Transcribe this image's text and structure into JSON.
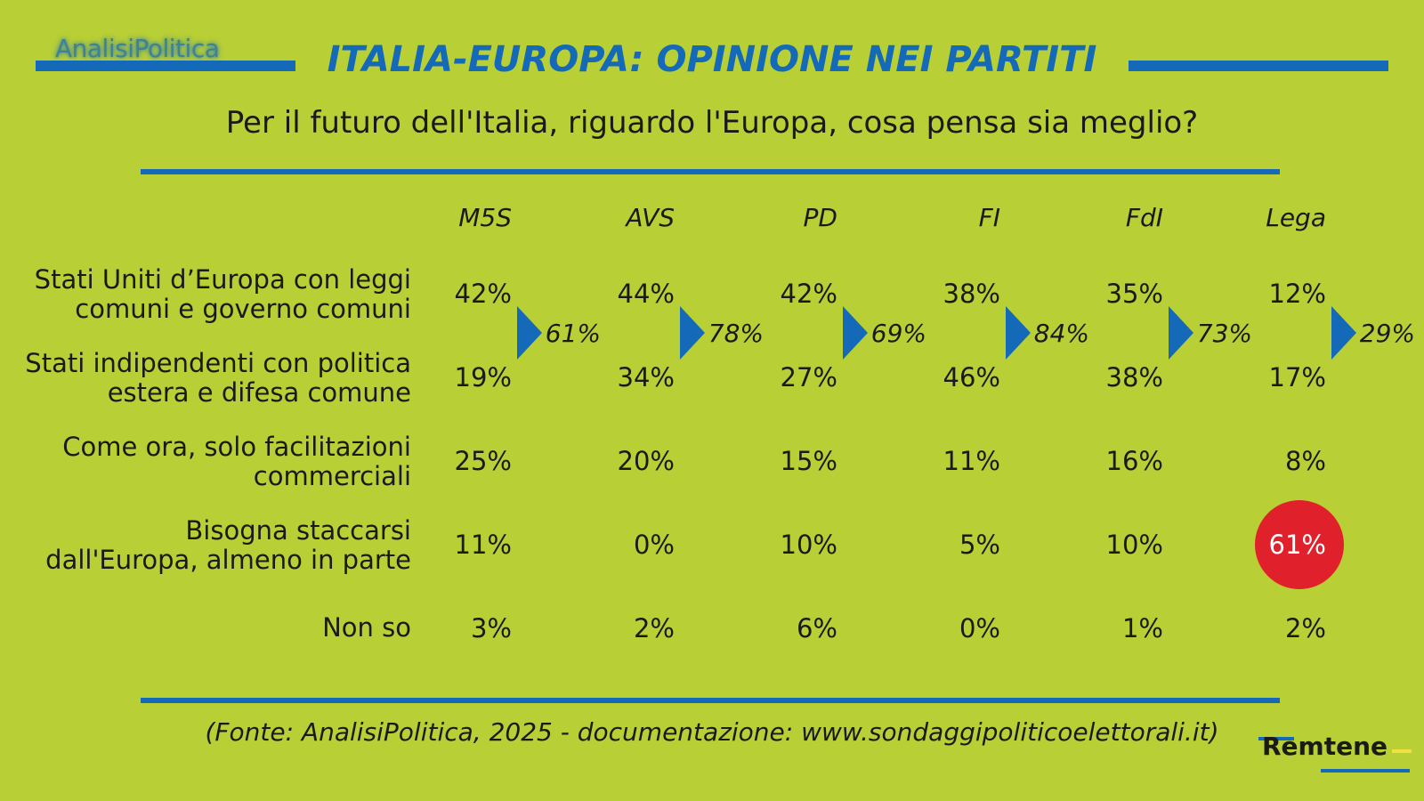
{
  "logo": "AnalisiPolitica",
  "title": "ITALIA-EUROPA: OPINIONE NEI PARTITI",
  "subtitle": "Per il futuro dell'Italia, riguardo l'Europa, cosa pensa sia meglio?",
  "source": "(Fonte: AnalisiPolitica, 2025 - documentazione: www.sondaggipoliticoelettorali.it)",
  "brand": "Remtene",
  "colors": {
    "background": "#b8cf36",
    "accent": "#1469b8",
    "highlight": "#e0202a"
  },
  "chart_data": {
    "type": "table",
    "parties": [
      "M5S",
      "AVS",
      "PD",
      "FI",
      "FdI",
      "Lega"
    ],
    "rows": [
      {
        "label_lines": [
          "Stati Uniti d’Europa con leggi",
          "comuni e governo comuni"
        ],
        "values": [
          "42%",
          "44%",
          "42%",
          "38%",
          "35%",
          "12%"
        ]
      },
      {
        "label_lines": [
          "Stati indipendenti con politica",
          "estera e difesa comune"
        ],
        "values": [
          "19%",
          "34%",
          "27%",
          "46%",
          "38%",
          "17%"
        ]
      },
      {
        "label_lines": [
          "Come ora, solo facilitazioni",
          "commerciali"
        ],
        "values": [
          "25%",
          "20%",
          "15%",
          "11%",
          "16%",
          "8%"
        ]
      },
      {
        "label_lines": [
          "Bisogna staccarsi",
          "dall'Europa, almeno in parte"
        ],
        "values": [
          "11%",
          "0%",
          "10%",
          "5%",
          "10%",
          "61%"
        ]
      },
      {
        "label_lines": [
          "Non so"
        ],
        "values": [
          "3%",
          "2%",
          "6%",
          "0%",
          "1%",
          "2%"
        ]
      }
    ],
    "combined_first_two": [
      "61%",
      "78%",
      "69%",
      "84%",
      "73%",
      "29%"
    ],
    "highlight": {
      "row": 3,
      "party": "Lega",
      "value": "61%"
    }
  }
}
